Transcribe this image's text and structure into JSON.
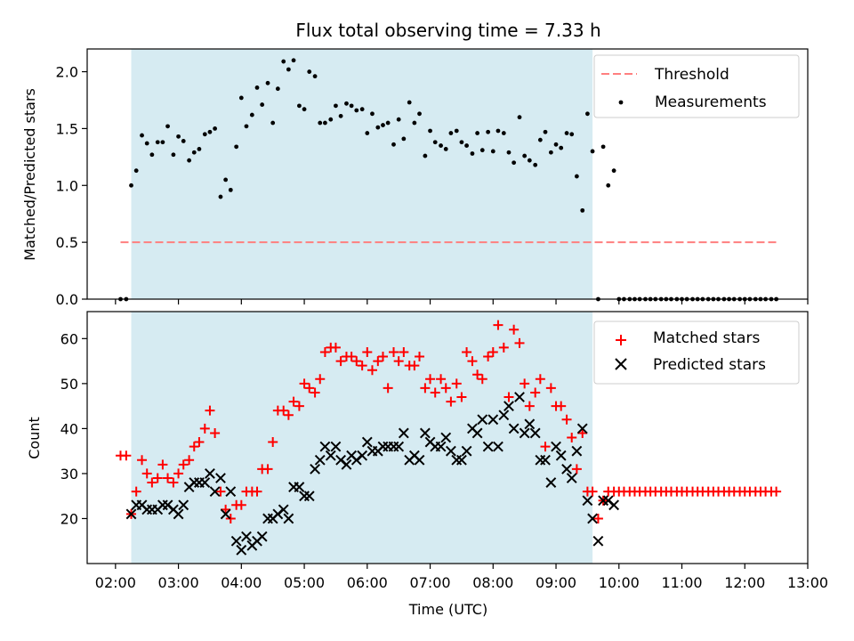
{
  "chart_data": [
    {
      "type": "scatter",
      "panel": "top",
      "title": "Flux total observing time = 7.33 h",
      "xlabel": "",
      "ylabel": "Matched/Predicted stars",
      "xlim": [
        1.55,
        13.0
      ],
      "ylim": [
        0.0,
        2.2
      ],
      "yticks": [
        0.0,
        0.5,
        1.0,
        1.5,
        2.0
      ],
      "ytick_labels": [
        "0.0",
        "0.5",
        "1.0",
        "1.5",
        "2.0"
      ],
      "observing_window": [
        2.25,
        9.58
      ],
      "legend_position": "top-right",
      "threshold": {
        "name": "Threshold",
        "value": 0.5,
        "x_range": [
          2.08,
          12.5
        ],
        "color": "#ff7f7f"
      },
      "series": [
        {
          "name": "Measurements",
          "color": "#000000",
          "x": [
            2.08,
            2.17,
            2.25,
            2.33,
            2.42,
            2.5,
            2.58,
            2.67,
            2.75,
            2.83,
            2.92,
            3.0,
            3.08,
            3.17,
            3.25,
            3.33,
            3.42,
            3.5,
            3.58,
            3.67,
            3.75,
            3.83,
            3.92,
            4.0,
            4.08,
            4.17,
            4.25,
            4.33,
            4.42,
            4.5,
            4.58,
            4.67,
            4.75,
            4.83,
            4.92,
            5.0,
            5.08,
            5.17,
            5.25,
            5.33,
            5.42,
            5.5,
            5.58,
            5.67,
            5.75,
            5.83,
            5.92,
            6.0,
            6.08,
            6.17,
            6.25,
            6.33,
            6.42,
            6.5,
            6.58,
            6.67,
            6.75,
            6.83,
            6.92,
            7.0,
            7.08,
            7.17,
            7.25,
            7.33,
            7.42,
            7.5,
            7.58,
            7.67,
            7.75,
            7.83,
            7.92,
            8.0,
            8.08,
            8.17,
            8.25,
            8.33,
            8.42,
            8.5,
            8.58,
            8.67,
            8.75,
            8.83,
            8.92,
            9.0,
            9.08,
            9.17,
            9.25,
            9.33,
            9.42,
            9.5,
            9.58,
            9.67,
            9.75,
            9.83,
            9.92,
            10.0,
            10.08,
            10.17,
            10.25,
            10.33,
            10.42,
            10.5,
            10.58,
            10.67,
            10.75,
            10.83,
            10.92,
            11.0,
            11.08,
            11.17,
            11.25,
            11.33,
            11.42,
            11.5,
            11.58,
            11.67,
            11.75,
            11.83,
            11.92,
            12.0,
            12.08,
            12.17,
            12.25,
            12.33,
            12.42,
            12.5
          ],
          "y": [
            0.0,
            0.0,
            1.0,
            1.13,
            1.44,
            1.37,
            1.27,
            1.38,
            1.38,
            1.52,
            1.27,
            1.43,
            1.39,
            1.22,
            1.29,
            1.32,
            1.45,
            1.47,
            1.5,
            0.9,
            1.05,
            0.96,
            1.34,
            1.77,
            1.52,
            1.62,
            1.86,
            1.71,
            1.9,
            1.55,
            1.85,
            2.09,
            2.02,
            2.1,
            1.7,
            1.67,
            2.0,
            1.96,
            1.55,
            1.55,
            1.58,
            1.7,
            1.61,
            1.72,
            1.7,
            1.66,
            1.67,
            1.46,
            1.63,
            1.51,
            1.53,
            1.55,
            1.36,
            1.58,
            1.41,
            1.73,
            1.55,
            1.63,
            1.26,
            1.48,
            1.38,
            1.35,
            1.32,
            1.46,
            1.48,
            1.38,
            1.35,
            1.28,
            1.46,
            1.31,
            1.47,
            1.3,
            1.48,
            1.46,
            1.29,
            1.2,
            1.6,
            1.26,
            1.22,
            1.18,
            1.4,
            1.47,
            1.29,
            1.36,
            1.33,
            1.46,
            1.45,
            1.08,
            0.78,
            1.63,
            1.3,
            0.0,
            1.34,
            1.0,
            1.13,
            0.0,
            0.0,
            0.0,
            0.0,
            0.0,
            0.0,
            0.0,
            0.0,
            0.0,
            0.0,
            0.0,
            0.0,
            0.0,
            0.0,
            0.0,
            0.0,
            0.0,
            0.0,
            0.0,
            0.0,
            0.0,
            0.0,
            0.0,
            0.0,
            0.0,
            0.0,
            0.0,
            0.0,
            0.0,
            0.0,
            0.0
          ]
        }
      ]
    },
    {
      "type": "scatter",
      "panel": "bottom",
      "title": "",
      "xlabel": "Time (UTC)",
      "ylabel": "Count",
      "xlim": [
        1.55,
        13.0
      ],
      "ylim": [
        10.0,
        66.0
      ],
      "yticks": [
        20,
        30,
        40,
        50,
        60
      ],
      "ytick_labels": [
        "20",
        "30",
        "40",
        "50",
        "60"
      ],
      "xticks": [
        2,
        3,
        4,
        5,
        6,
        7,
        8,
        9,
        10,
        11,
        12,
        13
      ],
      "xtick_labels": [
        "02:00",
        "03:00",
        "04:00",
        "05:00",
        "06:00",
        "07:00",
        "08:00",
        "09:00",
        "10:00",
        "11:00",
        "12:00",
        "13:00"
      ],
      "observing_window": [
        2.25,
        9.58
      ],
      "legend_position": "top-right",
      "series": [
        {
          "name": "Matched stars",
          "marker": "plus",
          "color": "#ff0000",
          "x": [
            2.08,
            2.17,
            2.25,
            2.33,
            2.42,
            2.5,
            2.58,
            2.67,
            2.75,
            2.83,
            2.92,
            3.0,
            3.08,
            3.17,
            3.25,
            3.33,
            3.42,
            3.5,
            3.58,
            3.67,
            3.75,
            3.83,
            3.92,
            4.0,
            4.08,
            4.17,
            4.25,
            4.33,
            4.42,
            4.5,
            4.58,
            4.67,
            4.75,
            4.83,
            4.92,
            5.0,
            5.08,
            5.17,
            5.25,
            5.33,
            5.42,
            5.5,
            5.58,
            5.67,
            5.75,
            5.83,
            5.92,
            6.0,
            6.08,
            6.17,
            6.25,
            6.33,
            6.42,
            6.5,
            6.58,
            6.67,
            6.75,
            6.83,
            6.92,
            7.0,
            7.08,
            7.17,
            7.25,
            7.33,
            7.42,
            7.5,
            7.58,
            7.67,
            7.75,
            7.83,
            7.92,
            8.0,
            8.08,
            8.17,
            8.25,
            8.33,
            8.42,
            8.5,
            8.58,
            8.67,
            8.75,
            8.83,
            8.92,
            9.0,
            9.08,
            9.17,
            9.25,
            9.33,
            9.42,
            9.5,
            9.58,
            9.67,
            9.75,
            9.83,
            9.92,
            10.0,
            10.08,
            10.17,
            10.25,
            10.33,
            10.42,
            10.5,
            10.58,
            10.67,
            10.75,
            10.83,
            10.92,
            11.0,
            11.08,
            11.17,
            11.25,
            11.33,
            11.42,
            11.5,
            11.58,
            11.67,
            11.75,
            11.83,
            11.92,
            12.0,
            12.08,
            12.17,
            12.25,
            12.33,
            12.42,
            12.5
          ],
          "y": [
            34,
            34,
            21,
            26,
            33,
            30,
            28,
            29,
            32,
            29,
            28,
            30,
            32,
            33,
            36,
            37,
            40,
            44,
            39,
            26,
            22,
            20,
            23,
            23,
            26,
            26,
            26,
            31,
            31,
            37,
            44,
            44,
            43,
            46,
            45,
            50,
            49,
            48,
            51,
            57,
            58,
            58,
            55,
            56,
            56,
            55,
            54,
            57,
            53,
            55,
            56,
            49,
            57,
            55,
            57,
            54,
            54,
            56,
            49,
            51,
            48,
            51,
            49,
            46,
            50,
            47,
            57,
            55,
            52,
            51,
            56,
            57,
            63,
            58,
            47,
            62,
            59,
            50,
            45,
            48,
            51,
            36,
            49,
            45,
            45,
            42,
            38,
            31,
            39,
            26,
            26,
            20,
            24,
            26,
            26,
            26,
            26,
            26,
            26,
            26,
            26,
            26,
            26,
            26,
            26,
            26,
            26,
            26,
            26,
            26,
            26,
            26,
            26,
            26,
            26,
            26,
            26,
            26,
            26,
            26,
            26,
            26,
            26,
            26,
            26,
            26
          ]
        },
        {
          "name": "Predicted stars",
          "marker": "x",
          "color": "#000000",
          "x": [
            2.25,
            2.33,
            2.42,
            2.5,
            2.58,
            2.67,
            2.75,
            2.83,
            2.92,
            3.0,
            3.08,
            3.17,
            3.25,
            3.33,
            3.42,
            3.5,
            3.58,
            3.67,
            3.75,
            3.83,
            3.92,
            4.0,
            4.08,
            4.17,
            4.25,
            4.33,
            4.42,
            4.5,
            4.58,
            4.67,
            4.75,
            4.83,
            4.92,
            5.0,
            5.08,
            5.17,
            5.25,
            5.33,
            5.42,
            5.5,
            5.58,
            5.67,
            5.75,
            5.83,
            5.92,
            6.0,
            6.08,
            6.17,
            6.25,
            6.33,
            6.42,
            6.5,
            6.58,
            6.67,
            6.75,
            6.83,
            6.92,
            7.0,
            7.08,
            7.17,
            7.25,
            7.33,
            7.42,
            7.5,
            7.58,
            7.67,
            7.75,
            7.83,
            7.92,
            8.0,
            8.08,
            8.17,
            8.25,
            8.33,
            8.42,
            8.5,
            8.58,
            8.67,
            8.75,
            8.83,
            8.92,
            9.0,
            9.08,
            9.17,
            9.25,
            9.33,
            9.42,
            9.5,
            9.58,
            9.67,
            9.75,
            9.83,
            9.92
          ],
          "y": [
            21,
            23,
            23,
            22,
            22,
            22,
            23,
            23,
            22,
            21,
            23,
            27,
            28,
            28,
            28,
            30,
            26,
            29,
            21,
            26,
            15,
            13,
            16,
            14,
            15,
            16,
            20,
            20,
            21,
            22,
            20,
            27,
            27,
            25,
            25,
            31,
            33,
            36,
            34,
            36,
            33,
            32,
            34,
            33,
            34,
            37,
            35,
            35,
            36,
            36,
            36,
            36,
            39,
            33,
            34,
            33,
            39,
            37,
            36,
            36,
            38,
            35,
            33,
            33,
            35,
            40,
            39,
            42,
            36,
            42,
            36,
            43,
            45,
            40,
            47,
            39,
            41,
            39,
            33,
            33,
            28,
            36,
            34,
            31,
            29,
            35,
            40,
            24,
            20,
            15,
            24,
            24,
            23
          ]
        }
      ]
    }
  ]
}
